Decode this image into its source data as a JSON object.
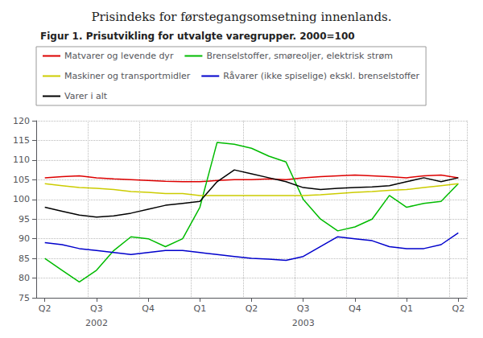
{
  "chart_data": {
    "type": "line",
    "title": "Prisindeks for førstegangsomsetning innenlands.",
    "subtitle": "Figur 1. Prisutvikling for utvalgte varegrupper. 2000=100",
    "categories": [
      "Q2",
      null,
      null,
      "Q3",
      null,
      null,
      "Q4",
      null,
      null,
      "Q1",
      null,
      null,
      "Q2",
      null,
      null,
      "Q3",
      null,
      null,
      "Q4",
      null,
      null,
      "Q1",
      null,
      null,
      "Q2"
    ],
    "annotations": [
      {
        "text": "2002",
        "x": 3
      },
      {
        "text": "2003",
        "x": 15
      }
    ],
    "ylim": [
      75,
      120
    ],
    "yticks": [
      75,
      80,
      85,
      90,
      95,
      100,
      105,
      110,
      115,
      120
    ],
    "grid": true,
    "legend": "top",
    "series": [
      {
        "name": "Matvarer og levende dyr",
        "color": "#dd0000",
        "values": [
          105.5,
          105.8,
          106.0,
          105.5,
          105.2,
          105.0,
          104.8,
          104.6,
          104.5,
          104.5,
          104.8,
          105.0,
          105.0,
          105.2,
          105.0,
          105.5,
          105.8,
          106.0,
          106.2,
          106.0,
          105.8,
          105.5,
          106.0,
          106.2,
          105.5
        ]
      },
      {
        "name": "Brenselstoffer, smøreoljer, elektrisk strøm",
        "color": "#00bb00",
        "values": [
          85.0,
          82.0,
          79.0,
          82.0,
          87.0,
          90.5,
          90.0,
          88.0,
          90.0,
          98.0,
          114.5,
          114.0,
          113.0,
          111.0,
          109.5,
          100.0,
          95.0,
          92.0,
          93.0,
          95.0,
          101.0,
          98.0,
          99.0,
          99.5,
          104.0
        ]
      },
      {
        "name": "Maskiner og transportmidler",
        "color": "#cccc00",
        "values": [
          104.0,
          103.5,
          103.0,
          102.8,
          102.5,
          102.0,
          101.8,
          101.5,
          101.5,
          101.0,
          101.0,
          101.0,
          101.0,
          101.0,
          101.0,
          101.0,
          101.2,
          101.5,
          101.8,
          102.0,
          102.3,
          102.5,
          103.0,
          103.5,
          104.0
        ]
      },
      {
        "name": "Råvarer (ikke spiselige) ekskl. brenselstoffer",
        "color": "#0000cc",
        "values": [
          89.0,
          88.5,
          87.5,
          87.0,
          86.5,
          86.0,
          86.5,
          87.0,
          87.0,
          86.5,
          86.0,
          85.5,
          85.0,
          84.8,
          84.5,
          85.5,
          88.0,
          90.5,
          90.0,
          89.5,
          88.0,
          87.5,
          87.5,
          88.5,
          91.5
        ]
      },
      {
        "name": "Varer i alt",
        "color": "#000000",
        "values": [
          98.0,
          97.0,
          96.0,
          95.5,
          95.8,
          96.5,
          97.5,
          98.5,
          99.0,
          99.5,
          104.5,
          107.5,
          106.5,
          105.5,
          104.5,
          103.0,
          102.5,
          102.8,
          103.0,
          103.2,
          103.5,
          104.5,
          105.5,
          104.5,
          105.5
        ]
      }
    ]
  }
}
